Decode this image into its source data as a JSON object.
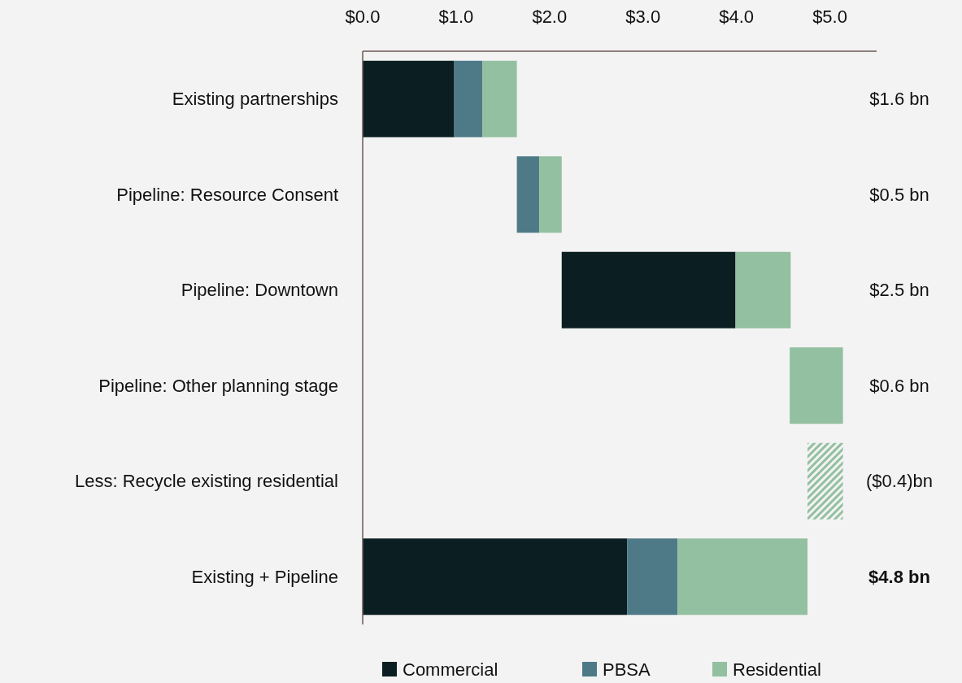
{
  "chart_data": {
    "type": "bar",
    "orientation": "horizontal",
    "categories": [
      "Existing partnerships",
      "Pipeline: Resource Consent",
      "Pipeline: Downtown",
      "Pipeline: Other planning stage",
      "Less: Recycle existing residential",
      "Existing + Pipeline"
    ],
    "series": [
      {
        "name": "Commercial",
        "color": "#0b1f22",
        "values": [
          0.98,
          null,
          1.86,
          null,
          null,
          2.83
        ],
        "base": [
          0,
          null,
          2.13,
          null,
          null,
          0
        ]
      },
      {
        "name": "PBSA",
        "color": "#4e7a87",
        "values": [
          0.3,
          0.24,
          null,
          null,
          null,
          0.54
        ],
        "base": [
          0.98,
          1.65,
          null,
          null,
          null,
          2.83
        ]
      },
      {
        "name": "Residential",
        "color": "#93c0a0",
        "values": [
          0.37,
          0.24,
          0.59,
          0.57,
          -0.38,
          1.39
        ],
        "base": [
          1.28,
          1.89,
          3.99,
          4.57,
          5.14,
          3.37
        ]
      }
    ],
    "xlim": [
      0,
      5.5
    ],
    "xticks": [
      {
        "value": 0,
        "label": "$0.0"
      },
      {
        "value": 1,
        "label": "$1.0"
      },
      {
        "value": 2,
        "label": "$2.0"
      },
      {
        "value": 3,
        "label": "$3.0"
      },
      {
        "value": 4,
        "label": "$4.0"
      },
      {
        "value": 5,
        "label": "$5.0"
      }
    ],
    "annotations": [
      "$1.6 bn",
      "$0.5 bn",
      "$2.5 bn",
      "$0.6 bn",
      "($0.4)bn",
      "$4.8 bn"
    ],
    "grid": false,
    "legend": "bottom"
  }
}
